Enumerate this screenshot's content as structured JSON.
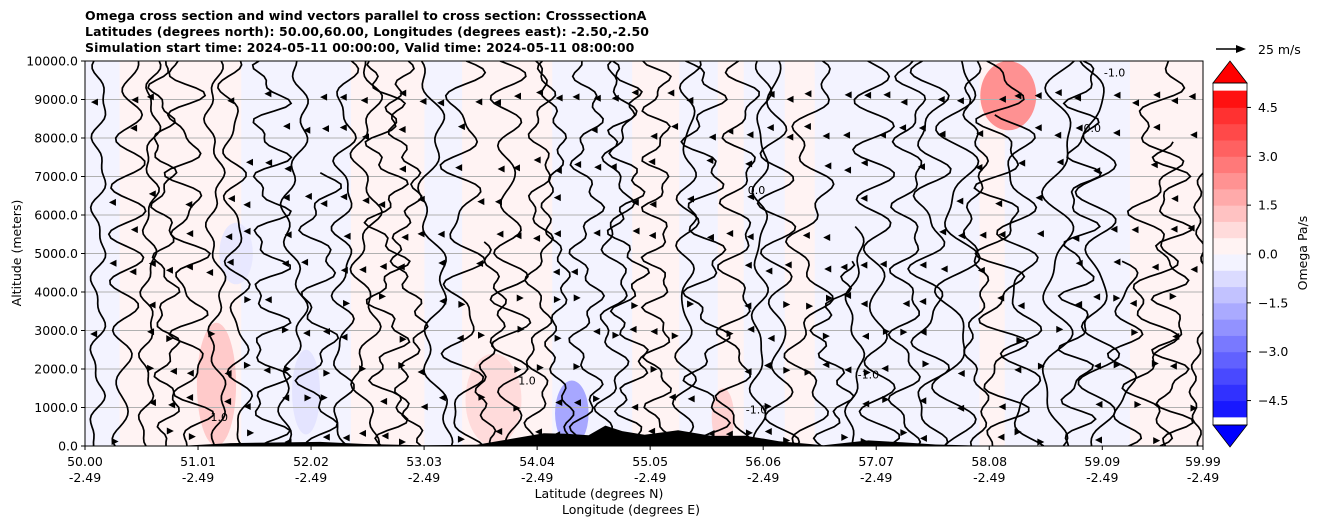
{
  "chart_data": {
    "type": "contour",
    "title": [
      "Omega cross section and wind vectors parallel to cross section: CrosssectionA",
      "Latitudes (degrees north): 50.00,60.00, Longitudes (degrees east): -2.50,-2.50",
      "Simulation start time: 2024-05-11 00:00:00, Valid time: 2024-05-11 08:00:00"
    ],
    "ylabel": "Altitude (meters)",
    "xlabel_lines": [
      "Latitude (degrees N)",
      "Longitude (degrees E)"
    ],
    "ylim": [
      0,
      10000
    ],
    "xlim": [
      50.0,
      59.99
    ],
    "yticks": [
      0,
      1000,
      2000,
      3000,
      4000,
      5000,
      6000,
      7000,
      8000,
      9000,
      10000
    ],
    "ytick_labels": [
      "0.0",
      "1000.0",
      "2000.0",
      "3000.0",
      "4000.0",
      "5000.0",
      "6000.0",
      "7000.0",
      "8000.0",
      "9000.0",
      "10000.0"
    ],
    "xticks": [
      {
        "lat": "50.00",
        "lon": "-2.49",
        "value": 50.0
      },
      {
        "lat": "51.01",
        "lon": "-2.49",
        "value": 51.01
      },
      {
        "lat": "52.02",
        "lon": "-2.49",
        "value": 52.02
      },
      {
        "lat": "53.03",
        "lon": "-2.49",
        "value": 53.03
      },
      {
        "lat": "54.04",
        "lon": "-2.49",
        "value": 54.04
      },
      {
        "lat": "55.05",
        "lon": "-2.49",
        "value": 55.05
      },
      {
        "lat": "56.06",
        "lon": "-2.49",
        "value": 56.06
      },
      {
        "lat": "57.07",
        "lon": "-2.49",
        "value": 57.07
      },
      {
        "lat": "58.08",
        "lon": "-2.49",
        "value": 58.08
      },
      {
        "lat": "59.09",
        "lon": "-2.49",
        "value": 59.09
      },
      {
        "lat": "59.99",
        "lon": "-2.49",
        "value": 59.99
      }
    ],
    "grid": true,
    "colorbar": {
      "label": "Omega Pa/s",
      "vmin": -5.25,
      "vmax": 5.25,
      "step": 0.5,
      "extend": "both",
      "ticks": [
        4.5,
        3.0,
        1.5,
        0.0,
        -1.5,
        -3.0,
        -4.5
      ],
      "tick_labels": [
        "4.5",
        "3.0",
        "1.5",
        "0.0",
        "−1.5",
        "−3.0",
        "−4.5"
      ],
      "colormap": "bwr"
    },
    "contour_levels": [
      -1.0,
      0.0,
      1.0
    ],
    "contour_label_samples": [
      {
        "text": "0.0",
        "lat": 56.0,
        "alt": 6550
      },
      {
        "text": "0.0",
        "lat": 59.0,
        "alt": 8150
      },
      {
        "text": "-1.0",
        "lat": 57.0,
        "alt": 1750
      },
      {
        "text": "1.0",
        "lat": 53.95,
        "alt": 1600
      },
      {
        "text": "1.0",
        "lat": 51.2,
        "alt": 650
      },
      {
        "text": "-1.0",
        "lat": 56.0,
        "alt": 850
      },
      {
        "text": "-1.0",
        "lat": 59.2,
        "alt": 9600
      }
    ],
    "quiver_key": {
      "label": "25 m/s",
      "speed_ms": 25
    },
    "terrain": [
      {
        "lat": 50.0,
        "alt": 0
      },
      {
        "lat": 50.9,
        "alt": 10
      },
      {
        "lat": 51.3,
        "alt": 60
      },
      {
        "lat": 51.7,
        "alt": 80
      },
      {
        "lat": 52.1,
        "alt": 100
      },
      {
        "lat": 52.5,
        "alt": 60
      },
      {
        "lat": 53.0,
        "alt": 20
      },
      {
        "lat": 53.5,
        "alt": 30
      },
      {
        "lat": 53.8,
        "alt": 150
      },
      {
        "lat": 54.1,
        "alt": 280
      },
      {
        "lat": 54.3,
        "alt": 420
      },
      {
        "lat": 54.5,
        "alt": 350
      },
      {
        "lat": 54.65,
        "alt": 520
      },
      {
        "lat": 54.8,
        "alt": 330
      },
      {
        "lat": 55.0,
        "alt": 280
      },
      {
        "lat": 55.3,
        "alt": 420
      },
      {
        "lat": 55.6,
        "alt": 260
      },
      {
        "lat": 55.9,
        "alt": 300
      },
      {
        "lat": 56.2,
        "alt": 120
      },
      {
        "lat": 56.6,
        "alt": 20
      },
      {
        "lat": 57.0,
        "alt": 120
      },
      {
        "lat": 57.3,
        "alt": 80
      },
      {
        "lat": 57.6,
        "alt": 40
      },
      {
        "lat": 58.0,
        "alt": 10
      },
      {
        "lat": 59.99,
        "alt": 0
      }
    ],
    "shaded_regions": [
      {
        "sign": "positive",
        "lat": [
          51.0,
          51.35
        ],
        "alt": [
          0,
          3200
        ],
        "omega": 1.2
      },
      {
        "sign": "positive",
        "lat": [
          53.4,
          53.9
        ],
        "alt": [
          0,
          2400
        ],
        "omega": 0.8
      },
      {
        "sign": "negative",
        "lat": [
          54.2,
          54.5
        ],
        "alt": [
          0,
          1700
        ],
        "omega": -2.0
      },
      {
        "sign": "positive",
        "lat": [
          58.0,
          58.5
        ],
        "alt": [
          8200,
          10000
        ],
        "omega": 2.5
      },
      {
        "sign": "positive",
        "lat": [
          55.6,
          55.8
        ],
        "alt": [
          0,
          1500
        ],
        "omega": 1.0
      },
      {
        "sign": "negative",
        "lat": [
          51.85,
          52.1
        ],
        "alt": [
          300,
          2500
        ],
        "omega": -0.6
      },
      {
        "sign": "negative",
        "lat": [
          51.2,
          51.5
        ],
        "alt": [
          4200,
          5800
        ],
        "omega": -0.5
      }
    ]
  }
}
